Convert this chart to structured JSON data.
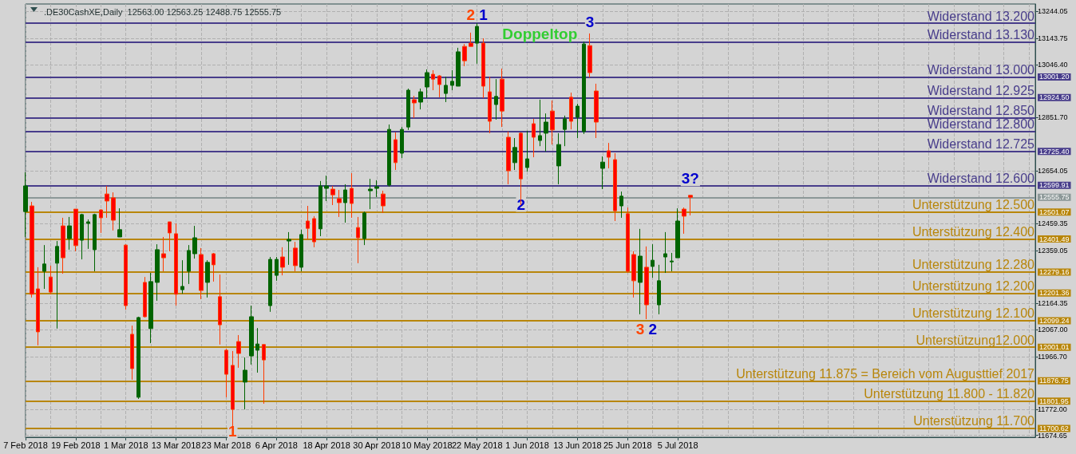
{
  "chart_data": {
    "type": "candlestick",
    "title": ".DE30CashXE,Daily  12563.00 12563.25 12488.75 12555.75",
    "categories": [
      "7 Feb 2018",
      null,
      null,
      null,
      null,
      null,
      null,
      null,
      "19 Feb 2018",
      null,
      null,
      null,
      null,
      null,
      null,
      null,
      "1 Mar 2018",
      null,
      null,
      null,
      null,
      null,
      null,
      null,
      "13 Mar 2018",
      null,
      null,
      null,
      null,
      null,
      null,
      null,
      "23 Mar 2018",
      null,
      null,
      null,
      null,
      null,
      null,
      null,
      "6 Apr 2018",
      null,
      null,
      null,
      null,
      null,
      null,
      null,
      "18 Apr 2018",
      null,
      null,
      null,
      null,
      null,
      null,
      null,
      "30 Apr 2018",
      null,
      null,
      null,
      null,
      null,
      null,
      null,
      "10 May 2018",
      null,
      null,
      null,
      null,
      null,
      null,
      null,
      "22 May 2018",
      null,
      null,
      null,
      null,
      null,
      null,
      null,
      "1 Jun 2018",
      null,
      null,
      null,
      null,
      null,
      null,
      null,
      "13 Jun 2018",
      null,
      null,
      null,
      null,
      null,
      null,
      null,
      "25 Jun 2018",
      null,
      null,
      null,
      null,
      null,
      null,
      null,
      "5 Jul 2018",
      null,
      null,
      null,
      null,
      null,
      null,
      null,
      null,
      null,
      null,
      null,
      null,
      null,
      null,
      null,
      null,
      null,
      null,
      null,
      null,
      null,
      null,
      null,
      null,
      null,
      null,
      null,
      null,
      null,
      null,
      null,
      null,
      null,
      null,
      null,
      null,
      null,
      null,
      null,
      null,
      null,
      null,
      null,
      null,
      null,
      null,
      null,
      null,
      null,
      null,
      null,
      null,
      null,
      null,
      null,
      null,
      null
    ],
    "ohlc": [
      [
        12503,
        12648,
        12409,
        12598
      ],
      [
        12524,
        12539,
        12185,
        12197
      ],
      [
        12217,
        12297,
        12008,
        12058
      ],
      [
        12282,
        12379,
        12217,
        12309
      ],
      [
        12261,
        12303,
        12197,
        12205
      ],
      [
        12312,
        12394,
        12070,
        12374
      ],
      [
        12450,
        12480,
        12273,
        12332
      ],
      [
        12403,
        12483,
        12362,
        12450
      ],
      [
        12512,
        12512,
        12356,
        12377
      ],
      [
        12397,
        12495,
        12326,
        12492
      ],
      [
        12459,
        12474,
        12365,
        12465
      ],
      [
        12362,
        12495,
        12282,
        12492
      ],
      [
        12509,
        12512,
        12424,
        12480
      ],
      [
        12568,
        12598,
        12480,
        12542
      ],
      [
        12554,
        12574,
        12433,
        12471
      ],
      [
        12409,
        12515,
        12409,
        12436
      ],
      [
        12379,
        12382,
        12140,
        12155
      ],
      [
        12049,
        12081,
        11881,
        11922
      ],
      [
        11816,
        12114,
        11810,
        12111
      ],
      [
        12241,
        12261,
        12111,
        12114
      ],
      [
        12070,
        12276,
        12016,
        12244
      ],
      [
        12241,
        12382,
        12173,
        12362
      ],
      [
        12347,
        12409,
        12282,
        12332
      ],
      [
        12465,
        12465,
        12356,
        12424
      ],
      [
        12421,
        12459,
        12155,
        12197
      ],
      [
        12214,
        12323,
        12199,
        12226
      ],
      [
        12282,
        12379,
        12235,
        12359
      ],
      [
        12347,
        12450,
        12329,
        12406
      ],
      [
        12344,
        12368,
        12179,
        12211
      ],
      [
        12241,
        12323,
        12185,
        12315
      ],
      [
        12347,
        12350,
        12244,
        12306
      ],
      [
        12188,
        12270,
        12011,
        12084
      ],
      [
        11990,
        11996,
        11816,
        11901
      ],
      [
        11934,
        11987,
        11692,
        11771
      ],
      [
        12022,
        12046,
        11925,
        11978
      ],
      [
        11872,
        11963,
        11771,
        11916
      ],
      [
        11969,
        12155,
        11937,
        12114
      ],
      [
        11990,
        12072,
        11907,
        12013
      ],
      [
        12011,
        12011,
        11792,
        11954
      ],
      [
        12155,
        12335,
        12132,
        12326
      ],
      [
        12267,
        12335,
        12247,
        12326
      ],
      [
        12335,
        12371,
        12267,
        12297
      ],
      [
        12394,
        12427,
        12306,
        12400
      ],
      [
        12368,
        12391,
        12282,
        12303
      ],
      [
        12297,
        12436,
        12282,
        12418
      ],
      [
        12468,
        12524,
        12400,
        12441
      ],
      [
        12477,
        12486,
        12371,
        12391
      ],
      [
        12439,
        12616,
        12412,
        12598
      ],
      [
        12589,
        12636,
        12542,
        12598
      ],
      [
        12586,
        12598,
        12527,
        12565
      ],
      [
        12551,
        12583,
        12483,
        12536
      ],
      [
        12536,
        12604,
        12462,
        12583
      ],
      [
        12589,
        12645,
        12480,
        12533
      ],
      [
        12444,
        12483,
        12312,
        12406
      ],
      [
        12403,
        12503,
        12379,
        12498
      ],
      [
        12580,
        12624,
        12512,
        12586
      ],
      [
        12589,
        12619,
        12557,
        12595
      ],
      [
        12568,
        12580,
        12498,
        12524
      ],
      [
        12601,
        12825,
        12595,
        12807
      ],
      [
        12769,
        12796,
        12657,
        12684
      ],
      [
        12719,
        12816,
        12701,
        12807
      ],
      [
        12816,
        12958,
        12805,
        12952
      ],
      [
        12917,
        12931,
        12849,
        12905
      ],
      [
        12908,
        12958,
        12881,
        12946
      ],
      [
        12964,
        13029,
        12923,
        13017
      ],
      [
        13011,
        13026,
        12952,
        12993
      ],
      [
        13005,
        13008,
        12926,
        12973
      ],
      [
        12940,
        13002,
        12908,
        12970
      ],
      [
        12970,
        13026,
        12952,
        12985
      ],
      [
        12967,
        13109,
        12967,
        13094
      ],
      [
        13114,
        13123,
        13041,
        13061
      ],
      [
        13126,
        13165,
        13114,
        13114
      ],
      [
        13126,
        13200,
        13050,
        13188
      ],
      [
        13126,
        13144,
        12923,
        12967
      ],
      [
        12946,
        13002,
        12793,
        12837
      ],
      [
        12899,
        12993,
        12843,
        12929
      ],
      [
        12993,
        13032,
        12816,
        12875
      ],
      [
        12778,
        12799,
        12604,
        12654
      ],
      [
        12684,
        12775,
        12657,
        12740
      ],
      [
        12793,
        12796,
        12527,
        12624
      ],
      [
        12666,
        12802,
        12651,
        12698
      ],
      [
        12828,
        12846,
        12704,
        12778
      ],
      [
        12766,
        12917,
        12745,
        12784
      ],
      [
        12793,
        12866,
        12725,
        12834
      ],
      [
        12875,
        12914,
        12751,
        12805
      ],
      [
        12672,
        12793,
        12604,
        12751
      ],
      [
        12807,
        12858,
        12745,
        12846
      ],
      [
        12926,
        12943,
        12807,
        12837
      ],
      [
        12852,
        12902,
        12775,
        12893
      ],
      [
        12799,
        13132,
        12790,
        13123
      ],
      [
        13117,
        13162,
        12999,
        13017
      ],
      [
        12949,
        12976,
        12775,
        12834
      ],
      [
        12663,
        12707,
        12586,
        12686
      ],
      [
        12728,
        12757,
        12663,
        12704
      ],
      [
        12695,
        12719,
        12468,
        12506
      ],
      [
        12524,
        12577,
        12480,
        12560
      ],
      [
        12495,
        12518,
        12276,
        12282
      ],
      [
        12344,
        12356,
        12185,
        12247
      ],
      [
        12241,
        12439,
        12123,
        12338
      ],
      [
        12297,
        12374,
        12105,
        12158
      ],
      [
        12300,
        12382,
        12258,
        12323
      ],
      [
        12158,
        12306,
        12123,
        12247
      ],
      [
        12335,
        12427,
        12276,
        12347
      ],
      [
        12317,
        12350,
        12282,
        12320
      ],
      [
        12332,
        12515,
        12332,
        12468
      ],
      [
        12512,
        12518,
        12421,
        12486
      ],
      [
        12563,
        12563.25,
        12488.75,
        12555.75
      ],
      null,
      null,
      null,
      null,
      null,
      null,
      null,
      null,
      null,
      null,
      null,
      null,
      null,
      null,
      null,
      null,
      null,
      null,
      null,
      null,
      null,
      null,
      null,
      null,
      null,
      null,
      null,
      null,
      null,
      null,
      null,
      null,
      null,
      null,
      null,
      null,
      null,
      null,
      null,
      null,
      null,
      null,
      null,
      null,
      null,
      null,
      null,
      null,
      null,
      null,
      null,
      null,
      null,
      null,
      null
    ],
    "ylim": [
      11668,
      13271
    ],
    "yticks": [
      13244.05,
      13143.75,
      {
        "value": 13046.4,
        "label": "13046.40"
      },
      {
        "value": 12851.7,
        "label": "12851.70"
      },
      12654.05,
      12459.35,
      12359.05,
      12164.35,
      {
        "value": 12067,
        "label": "12067.00"
      },
      {
        "value": 11966.7,
        "label": "11966.70"
      },
      {
        "value": 11772,
        "label": "11772.00"
      },
      11674.65
    ],
    "ref_lines": [
      {
        "axis": "y",
        "value": 13200,
        "label": "Widerstand 13.200",
        "color": "#483d8b"
      },
      {
        "axis": "y",
        "value": 13130,
        "label": "Widerstand 13.130",
        "color": "#483d8b"
      },
      {
        "axis": "y",
        "value": 13001.2,
        "label": "Widerstand 13.000",
        "color": "#483d8b"
      },
      {
        "axis": "y",
        "value": 12924.5,
        "label": "Widerstand 12.925",
        "color": "#483d8b"
      },
      {
        "axis": "y",
        "value": 12850,
        "label": "Widerstand 12.850",
        "color": "#483d8b"
      },
      {
        "axis": "y",
        "value": 12800,
        "label": "Widerstand 12.800",
        "color": "#483d8b"
      },
      {
        "axis": "y",
        "value": 12725.4,
        "label": "Widerstand 12.725",
        "color": "#483d8b"
      },
      {
        "axis": "y",
        "value": 12599.91,
        "label": "Widerstand 12.600",
        "color": "#483d8b"
      },
      {
        "axis": "y",
        "value": 12555.75,
        "color": "#8c9898"
      },
      {
        "axis": "y",
        "value": 12501.07,
        "label": "Unterstützung 12.500",
        "color": "#b8860b"
      },
      {
        "axis": "y",
        "value": 12401.49,
        "label": "Unterstützung 12.400",
        "color": "#b8860b"
      },
      {
        "axis": "y",
        "value": 12279.16,
        "label": "Unterstützung 12.280",
        "color": "#b8860b"
      },
      {
        "axis": "y",
        "value": 12201.36,
        "label": "Unterstützung 12.200",
        "color": "#b8860b"
      },
      {
        "axis": "y",
        "value": 12099.24,
        "label": "Unterstützung 12.100",
        "color": "#b8860b"
      },
      {
        "axis": "y",
        "value": 12001.01,
        "label": "Unterstützung12.000",
        "color": "#b8860b"
      },
      {
        "axis": "y",
        "value": 11876.75,
        "label": "Unterstützung 11.875 = Bereich vom Augusttief 2017",
        "color": "#b8860b"
      },
      {
        "axis": "y",
        "value": 11801.95,
        "label": "Unterstützung 11.800 - 11.820",
        "color": "#b8860b"
      },
      {
        "axis": "y",
        "value": 11700.62,
        "label": "Unterstützung 11.700",
        "color": "#b8860b"
      }
    ],
    "annotations": [
      "2",
      "1",
      "Doppeltop",
      "3",
      "2",
      "3?",
      "3",
      "2",
      "1",
      "13001.20",
      "12924.50",
      "12725.40",
      "12599.91",
      "12555.75",
      "12501.07",
      "12401.49",
      "12279.16",
      "12201.36",
      "12099.24",
      "12001.01",
      "11876.75",
      "11801.95",
      "11700.62"
    ],
    "grid": true
  }
}
